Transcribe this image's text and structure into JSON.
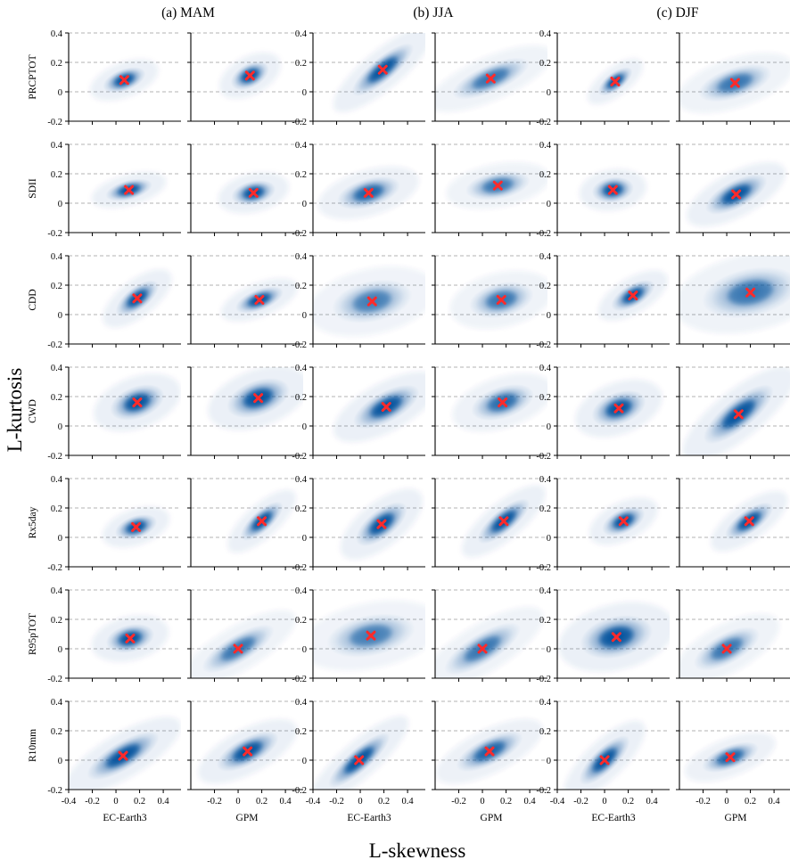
{
  "figure": {
    "xlabel": "L-skewness",
    "ylabel": "L-kurtosis",
    "seasons": [
      "(a) MAM",
      "(b) JJA",
      "(c) DJF"
    ],
    "sources": [
      "EC-Earth3",
      "GPM"
    ],
    "indices": [
      "PRCPTOT",
      "SDII",
      "CDD",
      "CWD",
      "Rx5day",
      "R95pTOT",
      "R10mm"
    ],
    "colors": {
      "density": "#08519c",
      "marker": "#ff2a2a",
      "grid": "#9a9a9a"
    }
  },
  "chart_data": {
    "type": "scatter",
    "description_of_type": "kernel density panels",
    "xlim": [
      -0.4,
      0.55
    ],
    "ylim": [
      -0.2,
      0.4
    ],
    "xticks_ec": [
      -0.4,
      -0.2,
      0,
      0.2,
      0.4
    ],
    "xticks_gpm": [
      -0.2,
      0,
      0.2,
      0.4
    ],
    "yticks": [
      -0.2,
      0,
      0.2,
      0.4
    ],
    "grid": "horizontal dashed",
    "panel_columns": [
      "MAM EC-Earth3",
      "MAM GPM",
      "JJA EC-Earth3",
      "JJA GPM",
      "DJF EC-Earth3",
      "DJF GPM"
    ],
    "panels": [
      [
        {
          "x": 0.07,
          "y": 0.08,
          "sx": 0.1,
          "sy": 0.07,
          "rho": 0.45,
          "w": 1.0
        },
        {
          "x": 0.1,
          "y": 0.11,
          "sx": 0.09,
          "sy": 0.08,
          "rho": 0.5,
          "w": 1.0
        },
        {
          "x": 0.19,
          "y": 0.15,
          "sx": 0.14,
          "sy": 0.11,
          "rho": 0.85,
          "w": 1.0
        },
        {
          "x": 0.07,
          "y": 0.09,
          "sx": 0.17,
          "sy": 0.1,
          "rho": 0.6,
          "w": 0.8
        },
        {
          "x": 0.09,
          "y": 0.07,
          "sx": 0.08,
          "sy": 0.07,
          "rho": 0.7,
          "w": 1.0
        },
        {
          "x": 0.07,
          "y": 0.06,
          "sx": 0.17,
          "sy": 0.1,
          "rho": 0.45,
          "w": 0.8
        }
      ],
      [
        {
          "x": 0.11,
          "y": 0.09,
          "sx": 0.11,
          "sy": 0.06,
          "rho": 0.4,
          "w": 1.0
        },
        {
          "x": 0.13,
          "y": 0.07,
          "sx": 0.11,
          "sy": 0.07,
          "rho": 0.3,
          "w": 1.0
        },
        {
          "x": 0.07,
          "y": 0.07,
          "sx": 0.15,
          "sy": 0.09,
          "rho": 0.4,
          "w": 0.9
        },
        {
          "x": 0.13,
          "y": 0.12,
          "sx": 0.16,
          "sy": 0.08,
          "rho": 0.3,
          "w": 0.8
        },
        {
          "x": 0.07,
          "y": 0.09,
          "sx": 0.11,
          "sy": 0.07,
          "rho": 0.2,
          "w": 1.0
        },
        {
          "x": 0.08,
          "y": 0.06,
          "sx": 0.14,
          "sy": 0.1,
          "rho": 0.6,
          "w": 1.0
        }
      ],
      [
        {
          "x": 0.18,
          "y": 0.11,
          "sx": 0.1,
          "sy": 0.09,
          "rho": 0.7,
          "w": 1.0
        },
        {
          "x": 0.18,
          "y": 0.1,
          "sx": 0.11,
          "sy": 0.07,
          "rho": 0.5,
          "w": 1.0
        },
        {
          "x": 0.1,
          "y": 0.09,
          "sx": 0.2,
          "sy": 0.12,
          "rho": 0.3,
          "w": 0.75
        },
        {
          "x": 0.16,
          "y": 0.1,
          "sx": 0.16,
          "sy": 0.1,
          "rho": 0.3,
          "w": 0.8
        },
        {
          "x": 0.24,
          "y": 0.13,
          "sx": 0.1,
          "sy": 0.08,
          "rho": 0.6,
          "w": 1.0
        },
        {
          "x": 0.2,
          "y": 0.15,
          "sx": 0.24,
          "sy": 0.14,
          "rho": 0.3,
          "w": 0.8
        }
      ],
      [
        {
          "x": 0.18,
          "y": 0.16,
          "sx": 0.13,
          "sy": 0.1,
          "rho": 0.4,
          "w": 1.0
        },
        {
          "x": 0.17,
          "y": 0.19,
          "sx": 0.15,
          "sy": 0.11,
          "rho": 0.4,
          "w": 1.0
        },
        {
          "x": 0.22,
          "y": 0.13,
          "sx": 0.15,
          "sy": 0.11,
          "rho": 0.6,
          "w": 1.0
        },
        {
          "x": 0.17,
          "y": 0.16,
          "sx": 0.15,
          "sy": 0.1,
          "rho": 0.4,
          "w": 0.85
        },
        {
          "x": 0.12,
          "y": 0.12,
          "sx": 0.13,
          "sy": 0.1,
          "rho": 0.4,
          "w": 1.0
        },
        {
          "x": 0.1,
          "y": 0.08,
          "sx": 0.16,
          "sy": 0.13,
          "rho": 0.8,
          "w": 1.0
        }
      ],
      [
        {
          "x": 0.17,
          "y": 0.07,
          "sx": 0.1,
          "sy": 0.07,
          "rho": 0.4,
          "w": 1.0
        },
        {
          "x": 0.2,
          "y": 0.11,
          "sx": 0.1,
          "sy": 0.09,
          "rho": 0.8,
          "w": 1.0
        },
        {
          "x": 0.18,
          "y": 0.09,
          "sx": 0.12,
          "sy": 0.11,
          "rho": 0.7,
          "w": 1.0
        },
        {
          "x": 0.18,
          "y": 0.11,
          "sx": 0.12,
          "sy": 0.1,
          "rho": 0.8,
          "w": 1.0
        },
        {
          "x": 0.16,
          "y": 0.11,
          "sx": 0.1,
          "sy": 0.08,
          "rho": 0.5,
          "w": 1.0
        },
        {
          "x": 0.19,
          "y": 0.11,
          "sx": 0.11,
          "sy": 0.09,
          "rho": 0.7,
          "w": 1.0
        }
      ],
      [
        {
          "x": 0.12,
          "y": 0.07,
          "sx": 0.12,
          "sy": 0.08,
          "rho": 0.3,
          "w": 1.0
        },
        {
          "x": 0.0,
          "y": 0.0,
          "sx": 0.16,
          "sy": 0.11,
          "rho": 0.7,
          "w": 0.8
        },
        {
          "x": 0.09,
          "y": 0.09,
          "sx": 0.22,
          "sy": 0.12,
          "rho": 0.3,
          "w": 0.75
        },
        {
          "x": 0.0,
          "y": 0.0,
          "sx": 0.17,
          "sy": 0.12,
          "rho": 0.7,
          "w": 0.8
        },
        {
          "x": 0.1,
          "y": 0.08,
          "sx": 0.18,
          "sy": 0.12,
          "rho": 0.3,
          "w": 1.0
        },
        {
          "x": 0.0,
          "y": 0.0,
          "sx": 0.15,
          "sy": 0.11,
          "rho": 0.6,
          "w": 0.8
        }
      ],
      [
        {
          "x": 0.06,
          "y": 0.03,
          "sx": 0.16,
          "sy": 0.11,
          "rho": 0.7,
          "w": 1.0
        },
        {
          "x": 0.08,
          "y": 0.06,
          "sx": 0.14,
          "sy": 0.1,
          "rho": 0.6,
          "w": 1.0
        },
        {
          "x": -0.01,
          "y": 0.0,
          "sx": 0.14,
          "sy": 0.11,
          "rho": 0.9,
          "w": 1.0
        },
        {
          "x": 0.06,
          "y": 0.06,
          "sx": 0.15,
          "sy": 0.1,
          "rho": 0.6,
          "w": 0.9
        },
        {
          "x": 0.0,
          "y": 0.0,
          "sx": 0.12,
          "sy": 0.11,
          "rho": 0.85,
          "w": 1.0
        },
        {
          "x": 0.03,
          "y": 0.02,
          "sx": 0.13,
          "sy": 0.08,
          "rho": 0.5,
          "w": 0.9
        }
      ]
    ]
  }
}
